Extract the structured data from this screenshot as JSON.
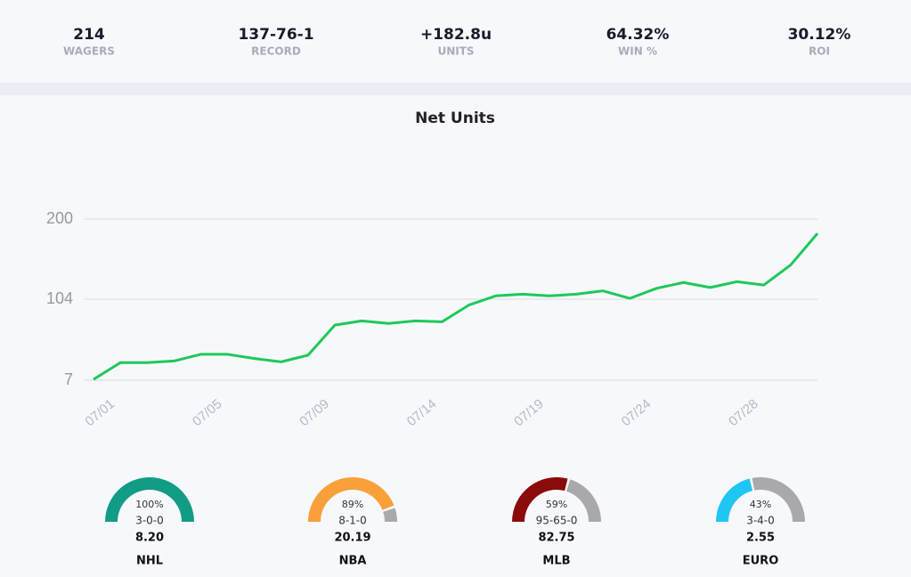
{
  "stats": [
    {
      "value": "214",
      "label": "WAGERS"
    },
    {
      "value": "137-76-1",
      "label": "RECORD"
    },
    {
      "value": "+182.8u",
      "label": "UNITS"
    },
    {
      "value": "64.32%",
      "label": "WIN %"
    },
    {
      "value": "30.12%",
      "label": "ROI"
    }
  ],
  "chart_data": {
    "type": "line",
    "title": "Net Units",
    "categories": [
      "07/01",
      null,
      null,
      null,
      "07/05",
      null,
      null,
      null,
      "07/09",
      null,
      null,
      null,
      "07/14",
      null,
      null,
      null,
      "07/19",
      null,
      null,
      null,
      "07/24",
      null,
      null,
      null,
      "07/28",
      null,
      null,
      null
    ],
    "series": [
      {
        "name": "Net Units",
        "color": "#1ec95a",
        "values": [
          8,
          28,
          28,
          30,
          38,
          38,
          33,
          29,
          37,
          73,
          78,
          75,
          78,
          77,
          97,
          108,
          110,
          108,
          110,
          114,
          105,
          117,
          124,
          118,
          125,
          121,
          145,
          182.8
        ]
      }
    ],
    "ylim": [
      7,
      200
    ],
    "yticks": [
      7,
      104,
      200
    ],
    "grid": true
  },
  "gauges": [
    {
      "name": "NHL",
      "pct": 100,
      "pct_label": "100%",
      "record": "3-0-0",
      "units": "8.20",
      "color": "#119c86"
    },
    {
      "name": "NBA",
      "pct": 89,
      "pct_label": "89%",
      "record": "8-1-0",
      "units": "20.19",
      "color": "#f9a03a"
    },
    {
      "name": "MLB",
      "pct": 59,
      "pct_label": "59%",
      "record": "95-65-0",
      "units": "82.75",
      "color": "#8b0a0a"
    },
    {
      "name": "EURO",
      "pct": 43,
      "pct_label": "43%",
      "record": "3-4-0",
      "units": "2.55",
      "color": "#1fc6f4"
    }
  ]
}
